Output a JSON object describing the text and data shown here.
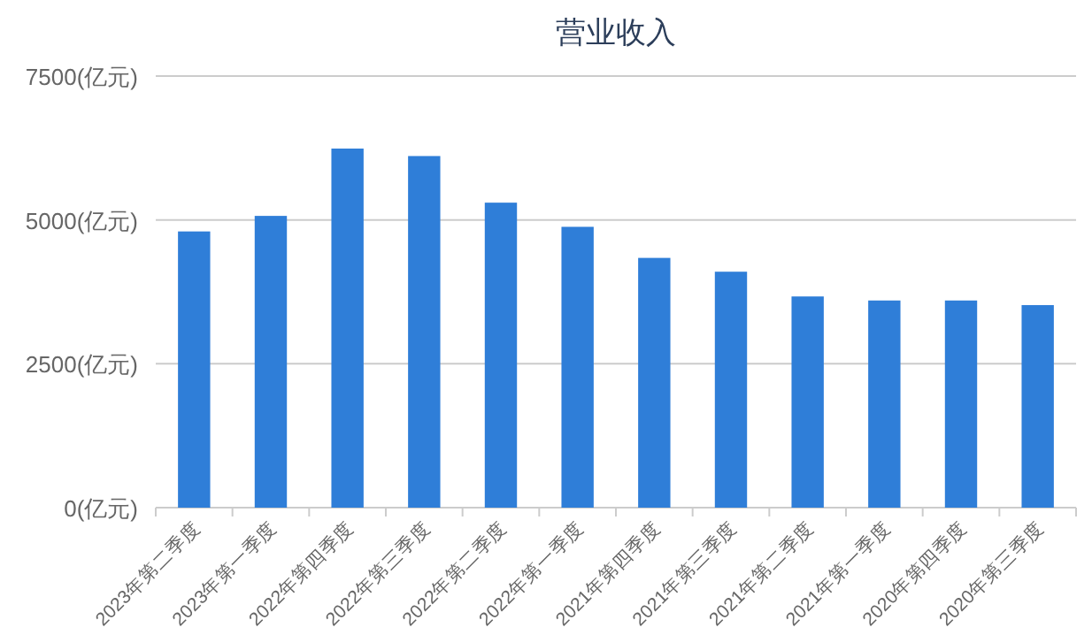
{
  "chart_data": {
    "type": "bar",
    "title": "营业收入",
    "categories": [
      "2023年第二季度",
      "2023年第一季度",
      "2022年第四季度",
      "2022年第三季度",
      "2022年第二季度",
      "2022年第一季度",
      "2021年第四季度",
      "2021年第三季度",
      "2021年第二季度",
      "2021年第一季度",
      "2020年第四季度",
      "2020年第三季度"
    ],
    "series": [
      {
        "color": "#2f7ed8",
        "values": [
          4800,
          5070,
          6240,
          6110,
          5300,
          4880,
          4340,
          4100,
          3670,
          3600,
          3600,
          3520
        ]
      }
    ],
    "ylim": [
      0,
      7500
    ],
    "yticks": [
      {
        "value": 0,
        "label": "0(亿元)"
      },
      {
        "value": 2500,
        "label": "2500(亿元)"
      },
      {
        "value": 5000,
        "label": "5000(亿元)"
      },
      {
        "value": 7500,
        "label": "7500(亿元)"
      }
    ],
    "grid": "y"
  }
}
